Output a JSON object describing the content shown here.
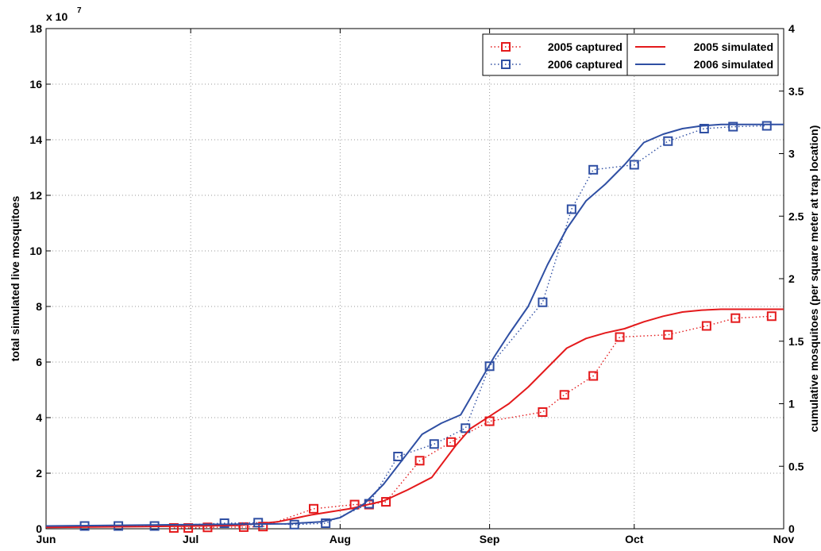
{
  "chart_data": {
    "type": "line",
    "xlabel": "",
    "ylabel": "total simulated live mosquitoes",
    "y2label": "cumulative mosquitoes (per square meter at trap location)",
    "y_exponent_base": "x 10",
    "y_exponent_power": "7",
    "x_ticks": [
      {
        "label": "Jun",
        "day": 0
      },
      {
        "label": "Jul",
        "day": 30
      },
      {
        "label": "Aug",
        "day": 61
      },
      {
        "label": "Sep",
        "day": 92
      },
      {
        "label": "Oct",
        "day": 122
      },
      {
        "label": "Nov",
        "day": 153
      }
    ],
    "xlim": [
      0,
      153
    ],
    "ylim": [
      0,
      18
    ],
    "y_ticks": [
      "0",
      "2",
      "4",
      "6",
      "8",
      "10",
      "12",
      "14",
      "16",
      "18"
    ],
    "y2lim": [
      0,
      4
    ],
    "y2_ticks": [
      "0",
      "0.5",
      "1",
      "1.5",
      "2",
      "2.5",
      "3",
      "3.5",
      "4"
    ],
    "grid": true,
    "legend_position": "top-right",
    "colors": {
      "2005": "#e41a1c",
      "2006": "#2f4fa3"
    },
    "series": [
      {
        "name": "2005 captured",
        "style": "dotted-square",
        "color": "#e41a1c",
        "points": [
          [
            26.5,
            0.03
          ],
          [
            29.5,
            0.03
          ],
          [
            33.5,
            0.05
          ],
          [
            41,
            0.06
          ],
          [
            45,
            0.08
          ],
          [
            55.5,
            0.72
          ],
          [
            64,
            0.87
          ],
          [
            67,
            0.87
          ],
          [
            70.5,
            0.97
          ],
          [
            77.5,
            2.45
          ],
          [
            84,
            3.12
          ],
          [
            92,
            3.87
          ],
          [
            103,
            4.2
          ],
          [
            107.5,
            4.82
          ],
          [
            113.5,
            5.5
          ],
          [
            119,
            6.9
          ],
          [
            129,
            6.98
          ],
          [
            137,
            7.3
          ],
          [
            143,
            7.58
          ],
          [
            150.5,
            7.65
          ]
        ]
      },
      {
        "name": "2006 captured",
        "style": "dotted-square",
        "color": "#2f4fa3",
        "points": [
          [
            8,
            0.1
          ],
          [
            15,
            0.1
          ],
          [
            22.5,
            0.1
          ],
          [
            37,
            0.2
          ],
          [
            44,
            0.22
          ],
          [
            51.5,
            0.15
          ],
          [
            58,
            0.2
          ],
          [
            67,
            0.9
          ],
          [
            73,
            2.6
          ],
          [
            80.5,
            3.05
          ],
          [
            87,
            3.62
          ],
          [
            92,
            5.85
          ],
          [
            103,
            8.15
          ],
          [
            109,
            11.5
          ],
          [
            113.5,
            12.92
          ],
          [
            122,
            13.1
          ],
          [
            129,
            13.95
          ],
          [
            136.5,
            14.4
          ],
          [
            142.5,
            14.47
          ],
          [
            149.5,
            14.5
          ]
        ]
      },
      {
        "name": "2005 simulated",
        "style": "solid",
        "color": "#e41a1c",
        "points": [
          [
            0,
            0.05
          ],
          [
            20,
            0.08
          ],
          [
            40,
            0.12
          ],
          [
            48,
            0.25
          ],
          [
            55,
            0.5
          ],
          [
            63,
            0.72
          ],
          [
            70,
            1.0
          ],
          [
            75,
            1.4
          ],
          [
            80,
            1.85
          ],
          [
            85,
            3.0
          ],
          [
            88,
            3.6
          ],
          [
            92,
            4.05
          ],
          [
            96,
            4.5
          ],
          [
            100,
            5.1
          ],
          [
            104,
            5.8
          ],
          [
            108,
            6.5
          ],
          [
            112,
            6.85
          ],
          [
            116,
            7.05
          ],
          [
            120,
            7.2
          ],
          [
            124,
            7.45
          ],
          [
            128,
            7.65
          ],
          [
            132,
            7.8
          ],
          [
            136,
            7.87
          ],
          [
            140,
            7.9
          ],
          [
            153,
            7.9
          ]
        ]
      },
      {
        "name": "2006 simulated",
        "style": "solid",
        "color": "#2f4fa3",
        "points": [
          [
            0,
            0.1
          ],
          [
            30,
            0.15
          ],
          [
            50,
            0.18
          ],
          [
            57,
            0.25
          ],
          [
            61,
            0.4
          ],
          [
            66,
            0.9
          ],
          [
            70,
            1.6
          ],
          [
            74,
            2.5
          ],
          [
            78,
            3.4
          ],
          [
            82,
            3.8
          ],
          [
            86,
            4.1
          ],
          [
            90,
            5.3
          ],
          [
            93,
            6.2
          ],
          [
            96,
            7.0
          ],
          [
            100,
            8.0
          ],
          [
            104,
            9.5
          ],
          [
            108,
            10.8
          ],
          [
            112,
            11.8
          ],
          [
            116,
            12.4
          ],
          [
            120,
            13.1
          ],
          [
            124,
            13.9
          ],
          [
            128,
            14.2
          ],
          [
            132,
            14.4
          ],
          [
            136,
            14.5
          ],
          [
            140,
            14.55
          ],
          [
            153,
            14.55
          ]
        ]
      }
    ]
  }
}
